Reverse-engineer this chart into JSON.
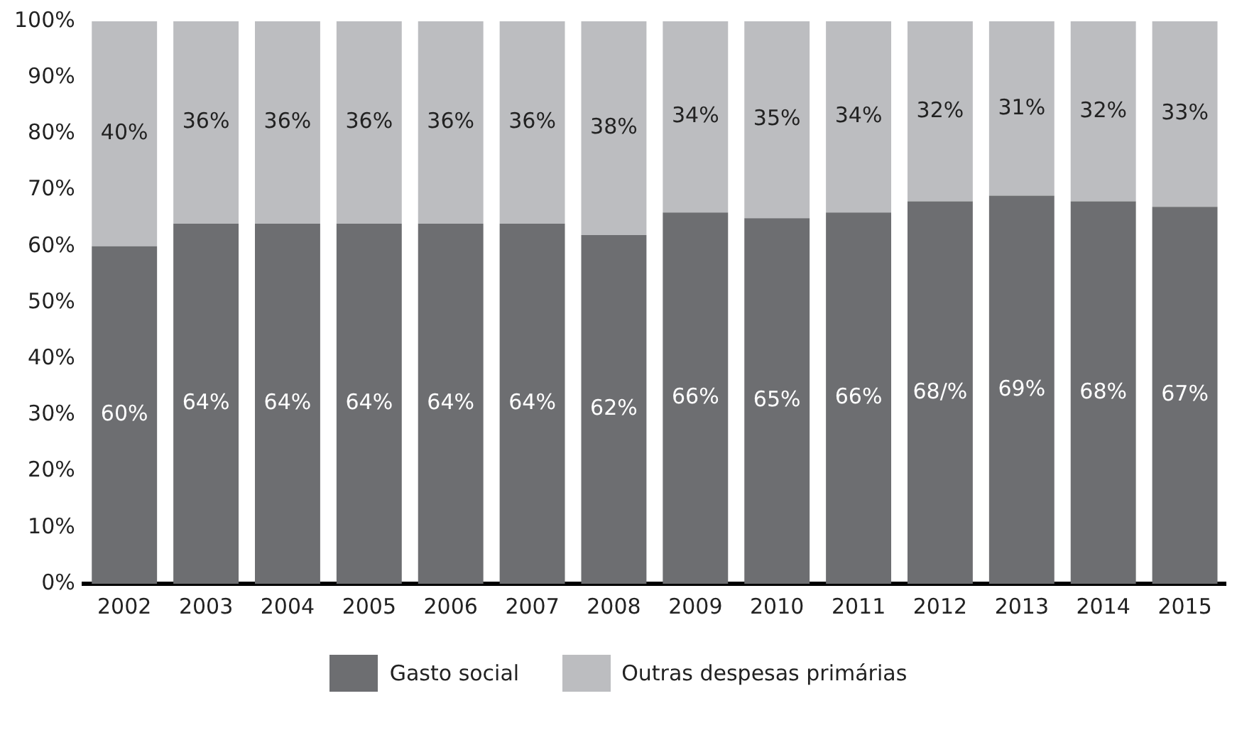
{
  "chart_data": {
    "type": "bar",
    "stacked": true,
    "categories": [
      "2002",
      "2003",
      "2004",
      "2005",
      "2006",
      "2007",
      "2008",
      "2009",
      "2010",
      "2011",
      "2012",
      "2013",
      "2014",
      "2015"
    ],
    "series": [
      {
        "name": "Gasto social",
        "color": "#6d6e71",
        "values": [
          60,
          64,
          64,
          64,
          64,
          64,
          62,
          66,
          65,
          66,
          68,
          69,
          68,
          67
        ],
        "value_labels": [
          "60%",
          "64%",
          "64%",
          "64%",
          "64%",
          "64%",
          "62%",
          "66%",
          "65%",
          "66%",
          "68/%",
          "69%",
          "68%",
          "67%"
        ]
      },
      {
        "name": "Outras despesas primárias",
        "color": "#bcbdc0",
        "values": [
          40,
          36,
          36,
          36,
          36,
          36,
          38,
          34,
          35,
          34,
          32,
          31,
          32,
          33
        ],
        "value_labels": [
          "40%",
          "36%",
          "36%",
          "36%",
          "36%",
          "36%",
          "38%",
          "34%",
          "35%",
          "34%",
          "32%",
          "31%",
          "32%",
          "33%"
        ]
      }
    ],
    "ylim": [
      0,
      100
    ],
    "yticks": [
      {
        "value": 0,
        "label": "0%"
      },
      {
        "value": 10,
        "label": "10%"
      },
      {
        "value": 20,
        "label": "20%"
      },
      {
        "value": 30,
        "label": "30%"
      },
      {
        "value": 40,
        "label": "40%"
      },
      {
        "value": 50,
        "label": "50%"
      },
      {
        "value": 60,
        "label": "60%"
      },
      {
        "value": 70,
        "label": "70%"
      },
      {
        "value": 80,
        "label": "80%"
      },
      {
        "value": 90,
        "label": "90%"
      },
      {
        "value": 100,
        "label": "100%"
      }
    ],
    "grid": false,
    "legend": "bottom"
  }
}
